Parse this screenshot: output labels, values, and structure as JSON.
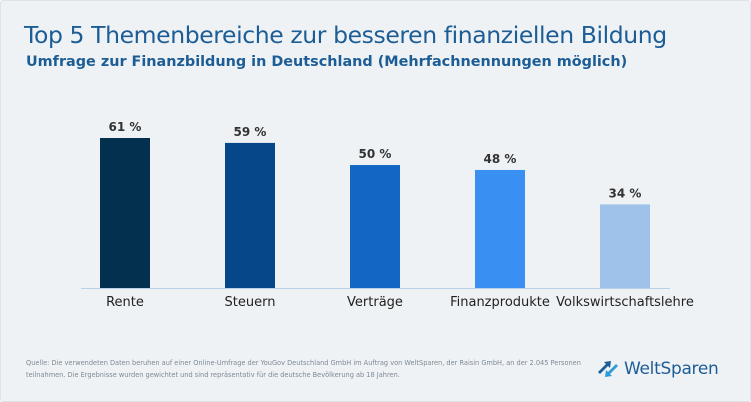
{
  "header": {
    "title": "Top 5 Themenbereiche zur besseren finanziellen Bildung",
    "subtitle": "Umfrage zur Finanzbildung in Deutschland (Mehrfachnennungen möglich)"
  },
  "chart_data": {
    "type": "bar",
    "title": "Top 5 Themenbereiche zur besseren finanziellen Bildung",
    "subtitle": "Umfrage zur Finanzbildung in Deutschland (Mehrfachnennungen möglich)",
    "categories": [
      "Rente",
      "Steuern",
      "Verträge",
      "Finanzprodukte",
      "Volkswirtschaftslehre"
    ],
    "values": [
      61,
      59,
      50,
      48,
      34
    ],
    "value_labels": [
      "61 %",
      "59 %",
      "50 %",
      "48 %",
      "34 %"
    ],
    "unit": "%",
    "bar_colors": [
      "#03304f",
      "#06478a",
      "#1266c4",
      "#3a8ff2",
      "#9fc2ea"
    ],
    "ylim": [
      0,
      61
    ],
    "xlabel": "",
    "ylabel": "",
    "grid": false,
    "legend": "none"
  },
  "footer": {
    "source": "Quelle: Die verwendeten Daten beruhen auf einer Online-Umfrage der YouGov Deutschland GmbH im Auftrag von WeltSparen, der Raisin GmbH, an der 2.045 Personen teilnahmen. Die Ergebnisse wurden gewichtet und sind repräsentativ für die deutsche Bevölkerung ab 18 Jahren."
  },
  "logo": {
    "text": "WeltSparen",
    "icon": "weltsparen-arrows-icon"
  },
  "colors": {
    "title": "#1d5d95",
    "background": "#eef2f5",
    "baseline": "#b8d0e8"
  }
}
